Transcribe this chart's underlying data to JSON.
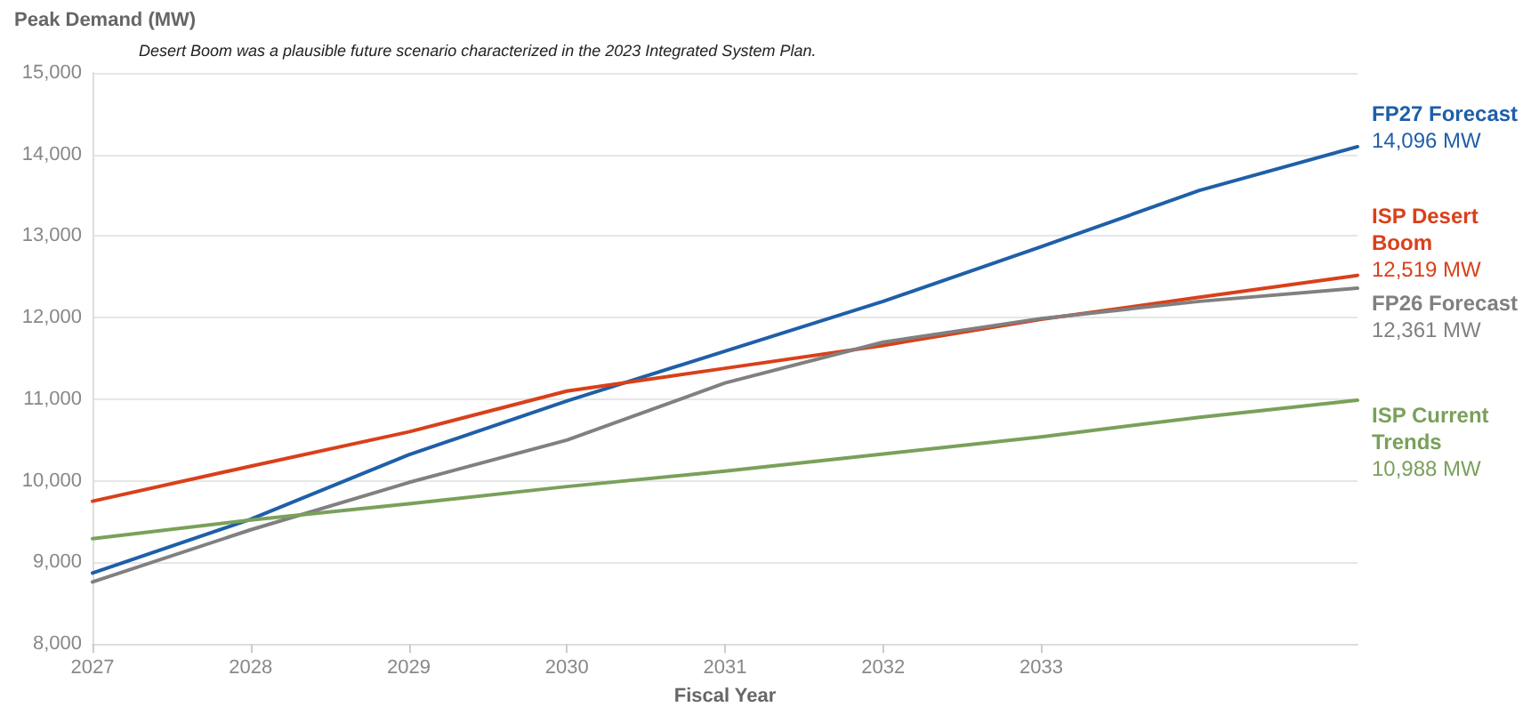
{
  "chart_data": {
    "type": "line",
    "ylabel": "Peak Demand (MW)",
    "xlabel": "Fiscal Year",
    "annotations": [
      "Desert Boom was a plausible future scenario characterized in the 2023 Integrated System Plan."
    ],
    "x": [
      2027,
      2028,
      2029,
      2030,
      2031,
      2032,
      2033,
      2034,
      2035
    ],
    "xlim": [
      2027,
      2035
    ],
    "xticks": [
      2027,
      2028,
      2029,
      2030,
      2031,
      2032,
      2033
    ],
    "ylim": [
      8000,
      15000
    ],
    "yticks": [
      {
        "value": 8000,
        "label": "8,000"
      },
      {
        "value": 9000,
        "label": "9,000"
      },
      {
        "value": 10000,
        "label": "10,000"
      },
      {
        "value": 11000,
        "label": "11,000"
      },
      {
        "value": 12000,
        "label": "12,000"
      },
      {
        "value": 13000,
        "label": "13,000"
      },
      {
        "value": 14000,
        "label": "14,000"
      },
      {
        "value": 15000,
        "label": "15,000"
      }
    ],
    "grid": "y",
    "legend": false,
    "marker": "none",
    "line_style": "solid",
    "series": [
      {
        "name": "FP27 Forecast",
        "color": "#1f5fa8",
        "values": [
          8870,
          9530,
          10320,
          10980,
          11590,
          12200,
          12870,
          13560,
          14096
        ],
        "value_labels": [
          null,
          null,
          null,
          null,
          null,
          null,
          null,
          null,
          "14,096 MW"
        ]
      },
      {
        "name": "ISP Desert Boom",
        "color": "#d9401a",
        "values": [
          9750,
          10180,
          10600,
          11100,
          11380,
          11660,
          11980,
          12250,
          12519
        ],
        "value_labels": [
          null,
          null,
          null,
          null,
          null,
          null,
          null,
          null,
          "12,519 MW"
        ]
      },
      {
        "name": "FP26 Forecast",
        "color": "#808080",
        "values": [
          8760,
          9400,
          9980,
          10500,
          11200,
          11700,
          11990,
          12200,
          12361
        ],
        "value_labels": [
          null,
          null,
          null,
          null,
          null,
          null,
          null,
          null,
          "12,361 MW"
        ]
      },
      {
        "name": "ISP Current Trends",
        "color": "#7aa05a",
        "values": [
          9290,
          9520,
          9720,
          9930,
          10120,
          10330,
          10540,
          10780,
          10988
        ],
        "value_labels": [
          null,
          null,
          null,
          null,
          null,
          null,
          null,
          null,
          "10,988 MW"
        ]
      }
    ]
  }
}
